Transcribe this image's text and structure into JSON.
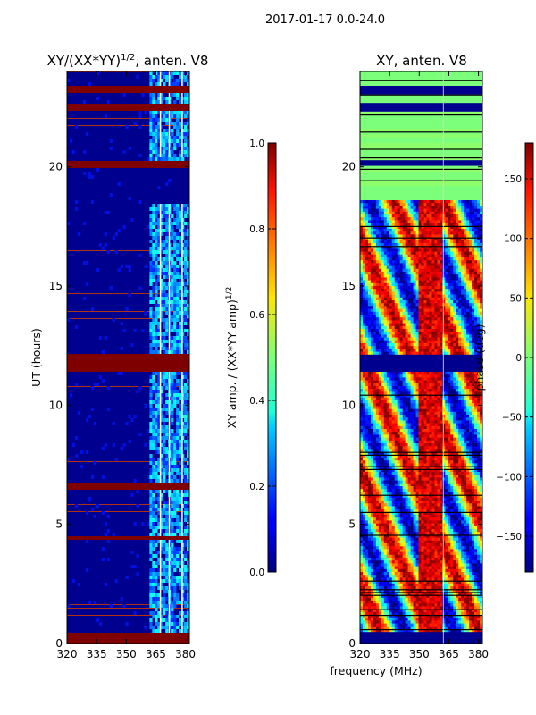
{
  "chart_data": [
    {
      "type": "heatmap",
      "suptitle": "2017-01-17 0.0-24.0",
      "title_prefix": "XY/(XX*YY)",
      "title_exp": "1/2",
      "title_suffix": ", anten. V8",
      "xlabel": "",
      "ylabel": "UT (hours)",
      "xlim": [
        320,
        382
      ],
      "ylim": [
        0,
        24
      ],
      "xticks": [
        "320",
        "335",
        "350",
        "365",
        "380"
      ],
      "xtick_values": [
        320,
        335,
        350,
        365,
        380
      ],
      "yticks": [
        "0",
        "5",
        "10",
        "15",
        "20"
      ],
      "ytick_values": [
        0,
        5,
        10,
        15,
        20
      ],
      "flagged_hours": [
        [
          0.0,
          0.45
        ],
        [
          4.4,
          4.55
        ],
        [
          6.5,
          6.75
        ],
        [
          11.4,
          12.1
        ],
        [
          20.0,
          20.3
        ],
        [
          22.3,
          22.7
        ],
        [
          23.1,
          23.35
        ]
      ],
      "bright_band_mhz": [
        362,
        382
      ],
      "colorbar": {
        "colormap": "jet",
        "range": [
          0.0,
          1.0
        ],
        "ticks": [
          "0.0",
          "0.2",
          "0.4",
          "0.6",
          "0.8",
          "1.0"
        ],
        "tick_values": [
          0.0,
          0.2,
          0.4,
          0.6,
          0.8,
          1.0
        ],
        "label_text": "XY amp. / (XX*YY amp)",
        "label_exp": "1/2"
      }
    },
    {
      "type": "heatmap",
      "title": "XY, anten. V8",
      "xlabel": "frequency (MHz)",
      "ylabel": "",
      "xlim": [
        320,
        382
      ],
      "ylim": [
        0,
        24
      ],
      "xticks": [
        "320",
        "335",
        "350",
        "365",
        "380"
      ],
      "xtick_values": [
        320,
        335,
        350,
        365,
        380
      ],
      "yticks": [
        "0",
        "5",
        "10",
        "15",
        "20"
      ],
      "ytick_values": [
        0,
        5,
        10,
        15,
        20
      ],
      "flagged_hours": [
        [
          0.0,
          0.45
        ],
        [
          11.4,
          12.1
        ],
        [
          20.0,
          20.3
        ],
        [
          22.3,
          22.7
        ],
        [
          23.1,
          23.35
        ]
      ],
      "hot_band_mhz": [
        350,
        362
      ],
      "colorbar": {
        "colormap": "jet",
        "range": [
          -180,
          180
        ],
        "ticks": [
          "−150",
          "−100",
          "−50",
          "0",
          "50",
          "100",
          "150"
        ],
        "tick_values": [
          -150,
          -100,
          -50,
          0,
          50,
          100,
          150
        ],
        "label_text": "phase (deg)"
      }
    }
  ]
}
